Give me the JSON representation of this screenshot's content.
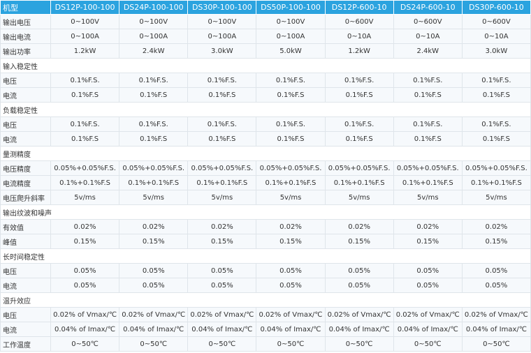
{
  "table": {
    "header": [
      "机型",
      "DS12P-100-100",
      "DS24P-100-100",
      "DS30P-100-100",
      "DS50P-100-100",
      "DS12P-600-10",
      "DS24P-600-10",
      "DS30P-600-10"
    ],
    "rows": [
      [
        "输出电压",
        "0~100V",
        "0~100V",
        "0~100V",
        "0~100V",
        "0~600V",
        "0~600V",
        "0~600V"
      ],
      [
        "输出电流",
        "0~100A",
        "0~100A",
        "0~100A",
        "0~100A",
        "0~10A",
        "0~10A",
        "0~10A"
      ],
      [
        "输出功率",
        "1.2kW",
        "2.4kW",
        "3.0kW",
        "5.0kW",
        "1.2kW",
        "2.4kW",
        "3.0kW"
      ],
      [
        "输入稳定性"
      ],
      [
        "电压",
        "0.1%F.S.",
        "0.1%F.S.",
        "0.1%F.S.",
        "0.1%F.S.",
        "0.1%F.S.",
        "0.1%F.S.",
        "0.1%F.S."
      ],
      [
        "电流",
        "0.1%F.S",
        "0.1%F.S",
        "0.1%F.S",
        "0.1%F.S",
        "0.1%F.S",
        "0.1%F.S",
        "0.1%F.S"
      ],
      [
        "负载稳定性"
      ],
      [
        "电压",
        "0.1%F.S.",
        "0.1%F.S.",
        "0.1%F.S.",
        "0.1%F.S.",
        "0.1%F.S.",
        "0.1%F.S.",
        "0.1%F.S."
      ],
      [
        "电流",
        "0.1%F.S",
        "0.1%F.S",
        "0.1%F.S",
        "0.1%F.S",
        "0.1%F.S",
        "0.1%F.S",
        "0.1%F.S"
      ],
      [
        "量测精度"
      ],
      [
        "电压精度",
        "0.05%+0.05%F.S.",
        "0.05%+0.05%F.S.",
        "0.05%+0.05%F.S.",
        "0.05%+0.05%F.S.",
        "0.05%+0.05%F.S.",
        "0.05%+0.05%F.S.",
        "0.05%+0.05%F.S."
      ],
      [
        "电流精度",
        "0.1%+0.1%F.S",
        "0.1%+0.1%F.S",
        "0.1%+0.1%F.S",
        "0.1%+0.1%F.S",
        "0.1%+0.1%F.S",
        "0.1%+0.1%F.S",
        "0.1%+0.1%F.S"
      ],
      [
        "电压爬升斜率",
        "5v/ms",
        "5v/ms",
        "5v/ms",
        "5v/ms",
        "5v/ms",
        "5v/ms",
        "5v/ms"
      ],
      [
        "输出纹波和噪声"
      ],
      [
        "有效值",
        "0.02%",
        "0.02%",
        "0.02%",
        "0.02%",
        "0.02%",
        "0.02%",
        "0.02%"
      ],
      [
        "峰值",
        "0.15%",
        "0.15%",
        "0.15%",
        "0.15%",
        "0.15%",
        "0.15%",
        "0.15%"
      ],
      [
        "长时间稳定性"
      ],
      [
        "电压",
        "0.05%",
        "0.05%",
        "0.05%",
        "0.05%",
        "0.05%",
        "0.05%",
        "0.05%"
      ],
      [
        "电流",
        "0.05%",
        "0.05%",
        "0.05%",
        "0.05%",
        "0.05%",
        "0.05%",
        "0.05%"
      ],
      [
        "温升效应"
      ],
      [
        "电压",
        "0.02% of Vmax/℃",
        "0.02% of Vmax/℃",
        "0.02% of Vmax/℃",
        "0.02% of Vmax/℃",
        "0.02% of Vmax/℃",
        "0.02% of Vmax/℃",
        "0.02% of Vmax/℃"
      ],
      [
        "电流",
        "0.04% of Imax/℃",
        "0.04% of Imax/℃",
        "0.04% of Imax/℃",
        "0.04% of Imax/℃",
        "0.04% of Imax/℃",
        "0.04% of Imax/℃",
        "0.04% of Imax/℃"
      ],
      [
        "工作温度",
        "0~50℃",
        "0~50℃",
        "0~50℃",
        "0~50℃",
        "0~50℃",
        "0~50℃",
        "0~50℃"
      ]
    ]
  }
}
